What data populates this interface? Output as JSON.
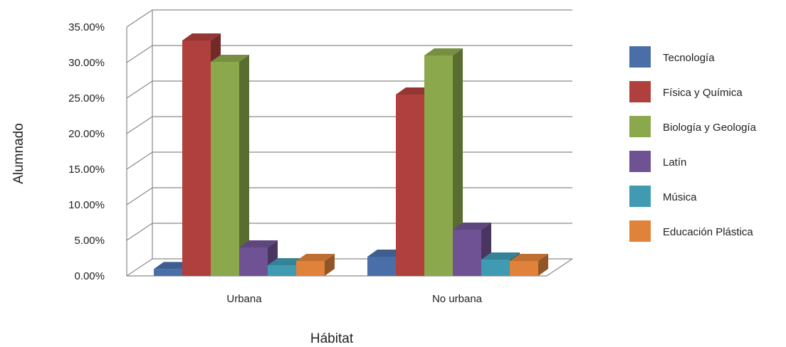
{
  "chart_data": {
    "type": "bar",
    "categories": [
      "Urbana",
      "No urbana"
    ],
    "series": [
      {
        "name": "Tecnología",
        "values": [
          0.96,
          2.7
        ],
        "color": "#4A6FA8"
      },
      {
        "name": "Física y Química",
        "values": [
          33.1,
          25.5
        ],
        "color": "#B0403D"
      },
      {
        "name": "Biología y Geología",
        "values": [
          30.1,
          31.0
        ],
        "color": "#8BA84C"
      },
      {
        "name": "Latín",
        "values": [
          4.0,
          6.5
        ],
        "color": "#6E5294"
      },
      {
        "name": "Música",
        "values": [
          1.5,
          2.3
        ],
        "color": "#3F9AB2"
      },
      {
        "name": "Educación Plástica",
        "values": [
          2.1,
          2.1
        ],
        "color": "#E0823A"
      }
    ],
    "y_ticks": [
      "0.00%",
      "5.00%",
      "10.00%",
      "15.00%",
      "20.00%",
      "25.00%",
      "30.00%",
      "35.00%"
    ],
    "ylim": [
      0,
      35
    ],
    "xlabel": "Hábitat",
    "ylabel": "Alumnado",
    "legend_position": "right",
    "grid": true,
    "style": "3d-clustered-column"
  }
}
